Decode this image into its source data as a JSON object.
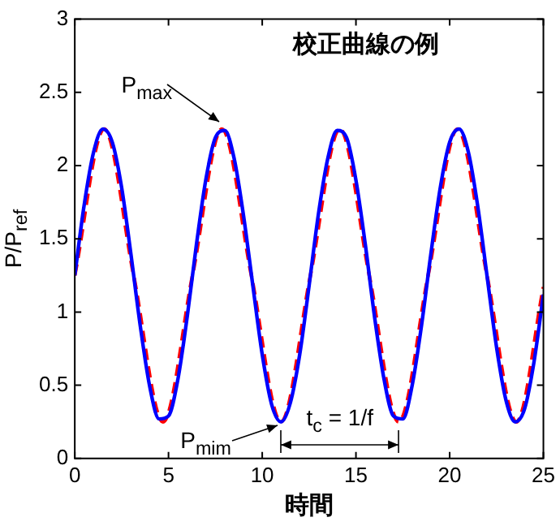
{
  "chart_data": {
    "type": "line",
    "title": "校正曲線の例",
    "xlabel": "時間",
    "ylabel": "P/P$_{ref}$",
    "xlim": [
      0,
      25
    ],
    "xticks": [
      0,
      5,
      10,
      15,
      20,
      25
    ],
    "ylim": [
      0,
      3
    ],
    "yticks": [
      0,
      0.5,
      1,
      1.5,
      2,
      2.5,
      3
    ],
    "grid": false,
    "legend": false,
    "marker": "none",
    "series": [
      {
        "color": "#0000ff",
        "line_style": "solid",
        "x": [
          0,
          0.5,
          1,
          1.5,
          2,
          2.5,
          3,
          3.5,
          4,
          4.5,
          5,
          5.5,
          6,
          6.5,
          7,
          7.5,
          8,
          8.5,
          9,
          9.5,
          10,
          10.5,
          11,
          11.5,
          12,
          12.5,
          13,
          13.5,
          14,
          14.5,
          15,
          15.5,
          16,
          16.5,
          17,
          17.5,
          18,
          18.5,
          19,
          19.5,
          20,
          20.5,
          21,
          21.5,
          22,
          22.5,
          23,
          23.5,
          24,
          24.5,
          25
        ],
        "values": [
          1.25,
          1.73,
          2.09,
          2.25,
          2.16,
          1.85,
          1.39,
          0.9,
          0.49,
          0.27,
          0.29,
          0.54,
          0.97,
          1.47,
          1.91,
          2.19,
          2.24,
          2.05,
          1.66,
          1.18,
          0.71,
          0.37,
          0.25,
          0.38,
          0.71,
          1.18,
          1.67,
          2.05,
          2.24,
          2.19,
          1.9,
          1.46,
          0.96,
          0.54,
          0.29,
          0.27,
          0.5,
          0.91,
          1.4,
          1.85,
          2.16,
          2.25,
          2.09,
          1.72,
          1.24,
          0.76,
          0.4,
          0.25,
          0.34,
          0.66,
          1.12
        ]
      },
      {
        "color": "#ff0000",
        "line_style": "dashed",
        "x": [
          0,
          1.57,
          3.14,
          4.71,
          6.28,
          7.85,
          9.42,
          11,
          12.57,
          14.14,
          15.71,
          17.28,
          18.85,
          20.42,
          21.99,
          23.56,
          25
        ],
        "values": [
          1.25,
          2.25,
          1.25,
          0.25,
          1.25,
          2.25,
          1.25,
          0.25,
          1.25,
          2.25,
          1.25,
          0.25,
          1.25,
          2.25,
          1.25,
          0.25,
          1.17
        ]
      }
    ],
    "annotations": [
      {
        "text": "P$_{max}$",
        "x": 7.85,
        "y": 2.25
      },
      {
        "text": "P$_{mim}$",
        "x": 11,
        "y": 0.25
      },
      "t$_{c}$ = 1/f"
    ]
  }
}
